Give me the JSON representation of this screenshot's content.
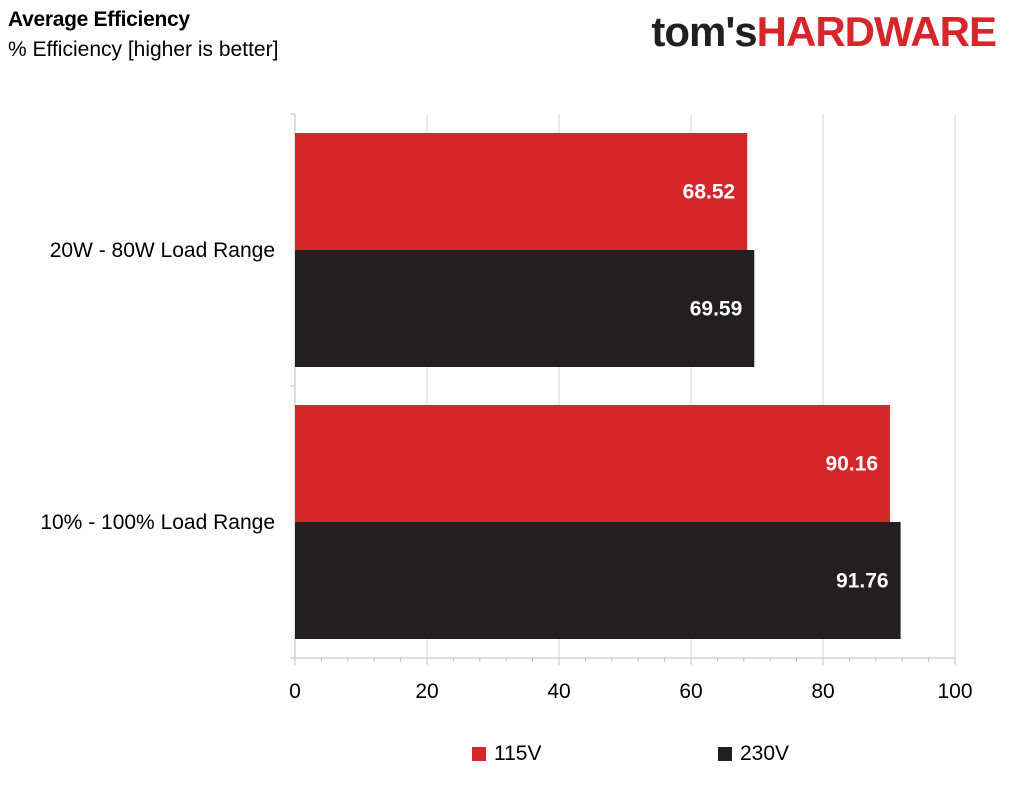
{
  "header": {
    "title": "Average Efficiency",
    "subtitle": "% Efficiency [higher is better]",
    "logo_part1": "tom's",
    "logo_part2": "HARDWARE"
  },
  "colors": {
    "series_115v": "#d7262b",
    "series_230v": "#231f20",
    "logo_red": "#d7262b"
  },
  "chart_data": {
    "type": "bar",
    "orientation": "horizontal",
    "title": "Average Efficiency",
    "subtitle": "% Efficiency [higher is better]",
    "categories": [
      "20W - 80W Load Range",
      "10% - 100% Load Range"
    ],
    "series": [
      {
        "name": "115V",
        "values": [
          68.52,
          90.16
        ]
      },
      {
        "name": "230V",
        "values": [
          69.59,
          91.76
        ]
      }
    ],
    "xlim": [
      0,
      100
    ],
    "xticks": [
      0,
      20,
      40,
      60,
      80,
      100
    ],
    "grid": true,
    "legend_position": "bottom"
  }
}
